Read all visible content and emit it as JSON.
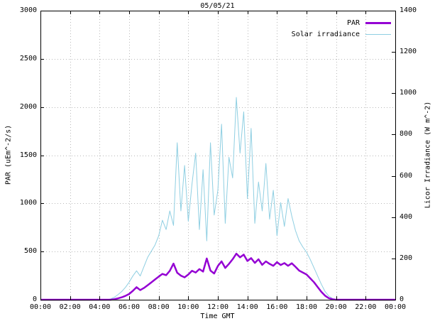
{
  "window": {
    "title": "05/05/21"
  },
  "chart_data": {
    "type": "line",
    "title": "05/05/21",
    "xlabel": "Time GMT",
    "ylabel": "PAR (uEm^-2/s)",
    "y2label": "Licor Irradiance (W m^-2)",
    "xlim": [
      0,
      24
    ],
    "ylim": [
      0,
      3000
    ],
    "y2lim": [
      0,
      1400
    ],
    "grid": true,
    "legend_position": "top-right-inside",
    "xtick_values": [
      0,
      2,
      4,
      6,
      8,
      10,
      12,
      14,
      16,
      18,
      20,
      22,
      24
    ],
    "xtick_labels": [
      "00:00",
      "02:00",
      "04:00",
      "06:00",
      "08:00",
      "10:00",
      "12:00",
      "14:00",
      "16:00",
      "18:00",
      "20:00",
      "22:00",
      "00:00"
    ],
    "ytick_values": [
      0,
      500,
      1000,
      1500,
      2000,
      2500,
      3000
    ],
    "ytick_labels": [
      "0",
      "500",
      "1000",
      "1500",
      "2000",
      "2500",
      "3000"
    ],
    "y2tick_values": [
      0,
      200,
      400,
      600,
      800,
      1000,
      1200,
      1400
    ],
    "y2tick_labels": [
      "0",
      "200",
      "400",
      "600",
      "800",
      "1000",
      "1200",
      "1400"
    ],
    "x": [
      0,
      0.25,
      0.5,
      0.75,
      1,
      1.25,
      1.5,
      1.75,
      2,
      2.25,
      2.5,
      2.75,
      3,
      3.25,
      3.5,
      3.75,
      4,
      4.25,
      4.5,
      4.75,
      5,
      5.25,
      5.5,
      5.75,
      6,
      6.25,
      6.5,
      6.75,
      7,
      7.25,
      7.5,
      7.75,
      8,
      8.25,
      8.5,
      8.75,
      9,
      9.25,
      9.5,
      9.75,
      10,
      10.25,
      10.5,
      10.75,
      11,
      11.25,
      11.5,
      11.75,
      12,
      12.25,
      12.5,
      12.75,
      13,
      13.25,
      13.5,
      13.75,
      14,
      14.25,
      14.5,
      14.75,
      15,
      15.25,
      15.5,
      15.75,
      16,
      16.25,
      16.5,
      16.75,
      17,
      17.25,
      17.5,
      17.75,
      18,
      18.25,
      18.5,
      18.75,
      19,
      19.25,
      19.5,
      19.75,
      20,
      20.25,
      20.5,
      20.75,
      21,
      21.25,
      21.5,
      21.75,
      22,
      22.25,
      22.5,
      22.75,
      23,
      23.25,
      23.5,
      23.75,
      24
    ],
    "series": [
      {
        "name": "PAR",
        "axis": "left",
        "units": "uEm^-2/s",
        "color": "#9400d3",
        "line_width": 2.5,
        "values": [
          0,
          0,
          0,
          0,
          0,
          0,
          0,
          0,
          0,
          0,
          0,
          0,
          0,
          0,
          0,
          0,
          0,
          0,
          0,
          0,
          6,
          14,
          25,
          40,
          60,
          92,
          130,
          100,
          122,
          150,
          180,
          210,
          240,
          268,
          255,
          300,
          375,
          280,
          250,
          232,
          262,
          300,
          282,
          318,
          292,
          428,
          302,
          272,
          350,
          398,
          330,
          372,
          420,
          478,
          440,
          468,
          402,
          432,
          382,
          420,
          362,
          398,
          372,
          352,
          390,
          360,
          380,
          352,
          378,
          342,
          302,
          282,
          262,
          222,
          182,
          132,
          82,
          42,
          16,
          5,
          0,
          0,
          0,
          0,
          0,
          0,
          0,
          0,
          0,
          0,
          0,
          0,
          0,
          0,
          0,
          0,
          0
        ]
      },
      {
        "name": "Solar irradiance",
        "axis": "right",
        "units": "W m^-2",
        "color": "#8fcfe2",
        "line_width": 1,
        "values": [
          0,
          0,
          0,
          0,
          0,
          0,
          0,
          0,
          0,
          0,
          0,
          0,
          0,
          0,
          0,
          0,
          0,
          0,
          0,
          4,
          12,
          25,
          40,
          60,
          85,
          115,
          140,
          115,
          160,
          205,
          235,
          265,
          310,
          385,
          340,
          430,
          360,
          760,
          430,
          650,
          380,
          560,
          710,
          340,
          630,
          285,
          760,
          410,
          530,
          850,
          370,
          690,
          590,
          980,
          710,
          910,
          490,
          830,
          370,
          570,
          430,
          660,
          390,
          530,
          310,
          470,
          355,
          490,
          405,
          335,
          285,
          255,
          230,
          195,
          155,
          115,
          75,
          40,
          18,
          6,
          0,
          0,
          0,
          0,
          0,
          0,
          0,
          0,
          0,
          0,
          0,
          0,
          0,
          0,
          0,
          0,
          0
        ]
      }
    ],
    "colors": {
      "grid": "#b8b8b8",
      "axis": "#000000",
      "background": "#ffffff"
    }
  }
}
